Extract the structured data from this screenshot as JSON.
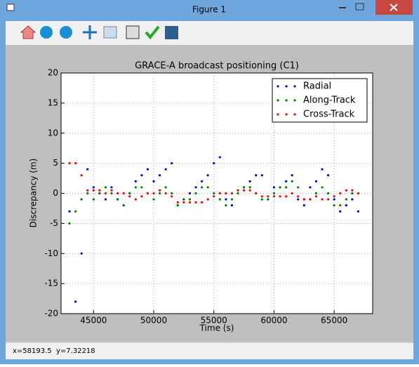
{
  "window": {
    "title": "Figure 1",
    "status_x": "x=58193.5",
    "status_y": "y=7.32218"
  },
  "chart_data": {
    "type": "scatter",
    "title": "GRACE-A broadcast positioning (C1)",
    "xlabel": "Time (s)",
    "ylabel": "Discrepancy (m)",
    "x": [
      43000,
      43500,
      44000,
      44500,
      45000,
      45500,
      46000,
      46500,
      47000,
      47500,
      48000,
      48500,
      49000,
      49500,
      50000,
      50500,
      51000,
      51500,
      52000,
      52500,
      53000,
      53500,
      54000,
      54500,
      55000,
      55500,
      56000,
      56500,
      57000,
      57500,
      58000,
      58500,
      59000,
      59500,
      60000,
      60500,
      61000,
      61500,
      62000,
      62500,
      63000,
      63500,
      64000,
      64500,
      65000,
      65500,
      66000,
      66500,
      67000
    ],
    "series": [
      {
        "name": "Radial",
        "color": "#0000ff",
        "values": [
          -3,
          -18,
          -10,
          4,
          1,
          0,
          -1,
          1,
          -1,
          -2,
          0,
          2,
          3,
          4,
          2,
          3,
          4,
          5,
          -2,
          -1,
          0,
          1,
          2,
          3,
          5,
          6,
          -1,
          -2,
          0,
          1,
          2,
          3,
          3,
          -1,
          1,
          1,
          2,
          3,
          -1,
          -2,
          1,
          2,
          4,
          3,
          -1,
          -3,
          -2,
          -1,
          -3
        ]
      },
      {
        "name": "Along-Track",
        "color": "#008000",
        "values": [
          -5,
          -3,
          -1,
          0,
          -1,
          0,
          1,
          0,
          -1,
          -2,
          0,
          1,
          1,
          0,
          -1,
          0,
          1,
          0,
          -2,
          -1,
          -1,
          0,
          1,
          1,
          0,
          -1,
          -2,
          -1,
          0,
          1,
          1,
          0,
          -1,
          -1,
          0,
          1,
          1,
          2,
          1,
          -1,
          -1,
          0,
          1,
          0,
          -2,
          -2,
          -1,
          0,
          0
        ]
      },
      {
        "name": "Cross-Track",
        "color": "#ff0000",
        "values": [
          5,
          5,
          3,
          0.5,
          0.5,
          0.5,
          0,
          0.5,
          0,
          0,
          -0.5,
          -1,
          -0.5,
          0,
          0,
          0.5,
          0,
          -0.5,
          -1.5,
          -1.5,
          -1.5,
          -1.5,
          -1.5,
          -1,
          -0.5,
          0,
          0,
          0,
          0.5,
          0.5,
          0.5,
          0,
          -0.5,
          -0.5,
          -0.5,
          -0.5,
          -0.5,
          0,
          -0.5,
          -1,
          -1,
          -0.5,
          -1,
          -1,
          -0.5,
          0,
          0.5,
          0.5,
          0
        ]
      }
    ],
    "xlim": [
      42300,
      68200
    ],
    "ylim": [
      -20,
      20
    ],
    "xticks": [
      45000,
      50000,
      55000,
      60000,
      65000
    ],
    "yticks": [
      -20,
      -15,
      -10,
      -5,
      0,
      5,
      10,
      15,
      20
    ],
    "grid": true,
    "legend": "upper right"
  }
}
